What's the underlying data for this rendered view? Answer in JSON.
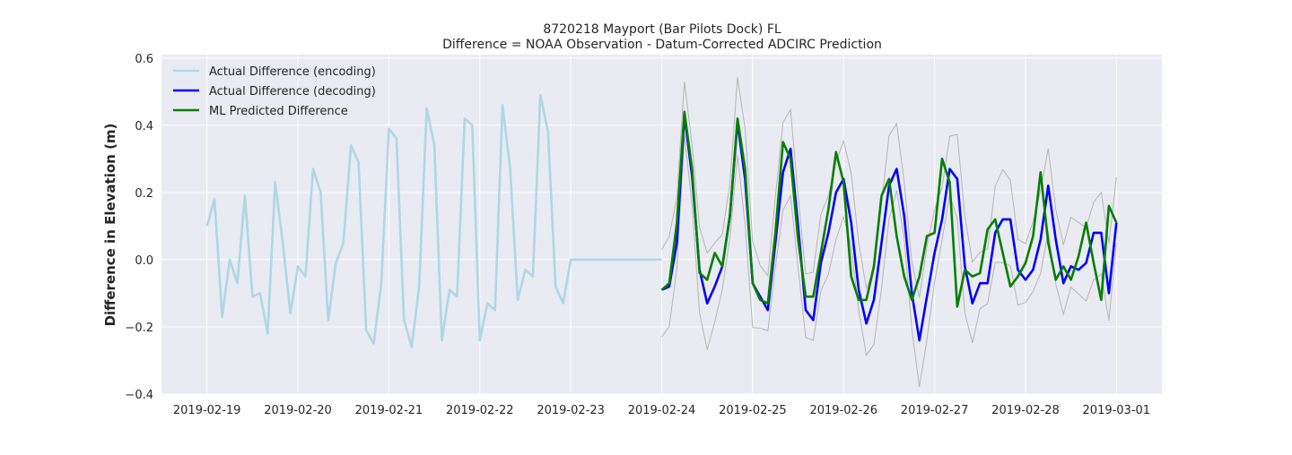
{
  "chart_data": {
    "type": "line",
    "title": "8720218 Mayport (Bar Pilots Dock) FL",
    "subtitle": "Difference = NOAA Observation - Datum-Corrected ADCIRC Prediction",
    "xlabel": "",
    "ylabel": "Difference in Elevation (m)",
    "x_axis": {
      "type": "date",
      "range": [
        "2019-02-18T12:00",
        "2019-03-01T12:00"
      ],
      "ticks": [
        "2019-02-19",
        "2019-02-20",
        "2019-02-21",
        "2019-02-22",
        "2019-02-23",
        "2019-02-24",
        "2019-02-25",
        "2019-02-26",
        "2019-02-27",
        "2019-02-28",
        "2019-03-01"
      ]
    },
    "y_axis": {
      "range": [
        -0.4,
        0.61
      ],
      "ticks": [
        -0.4,
        -0.2,
        0.0,
        0.2,
        0.4,
        0.6
      ],
      "tick_labels": [
        "−0.4",
        "−0.2",
        "0.0",
        "0.2",
        "0.4",
        "0.6"
      ]
    },
    "grid": true,
    "legend_position": "top-left",
    "colors": {
      "background": "#eaeaf2",
      "encoding": "#add8e6",
      "decoding": "#0000ff",
      "predicted": "#008000",
      "bounds": "#b5b5b5",
      "grid": "#ffffff"
    },
    "series": [
      {
        "name": "Actual Difference (encoding)",
        "role": "encoding",
        "x": [
          "2019-02-19T00:00",
          "2019-02-19T02:00",
          "2019-02-19T04:00",
          "2019-02-19T06:00",
          "2019-02-19T08:00",
          "2019-02-19T10:00",
          "2019-02-19T12:00",
          "2019-02-19T14:00",
          "2019-02-19T16:00",
          "2019-02-19T18:00",
          "2019-02-19T20:00",
          "2019-02-19T22:00",
          "2019-02-20T00:00",
          "2019-02-20T02:00",
          "2019-02-20T04:00",
          "2019-02-20T06:00",
          "2019-02-20T08:00",
          "2019-02-20T10:00",
          "2019-02-20T12:00",
          "2019-02-20T14:00",
          "2019-02-20T16:00",
          "2019-02-20T18:00",
          "2019-02-20T20:00",
          "2019-02-20T22:00",
          "2019-02-21T00:00",
          "2019-02-21T02:00",
          "2019-02-21T04:00",
          "2019-02-21T06:00",
          "2019-02-21T08:00",
          "2019-02-21T10:00",
          "2019-02-21T12:00",
          "2019-02-21T14:00",
          "2019-02-21T16:00",
          "2019-02-21T18:00",
          "2019-02-21T20:00",
          "2019-02-21T22:00",
          "2019-02-22T00:00",
          "2019-02-22T02:00",
          "2019-02-22T04:00",
          "2019-02-22T06:00",
          "2019-02-22T08:00",
          "2019-02-22T10:00",
          "2019-02-22T12:00",
          "2019-02-22T14:00",
          "2019-02-22T16:00",
          "2019-02-22T18:00",
          "2019-02-22T20:00",
          "2019-02-22T22:00",
          "2019-02-23T00:00",
          "2019-02-23T02:00",
          "2019-02-23T04:00",
          "2019-02-23T06:00",
          "2019-02-23T08:00",
          "2019-02-23T10:00",
          "2019-02-23T12:00",
          "2019-02-23T14:00",
          "2019-02-23T16:00",
          "2019-02-23T18:00",
          "2019-02-23T20:00",
          "2019-02-23T22:00",
          "2019-02-24T00:00"
        ],
        "y": [
          0.1,
          0.18,
          -0.17,
          0.0,
          -0.07,
          0.19,
          -0.11,
          -0.1,
          -0.22,
          0.23,
          0.05,
          -0.16,
          -0.02,
          -0.05,
          0.27,
          0.2,
          -0.18,
          -0.01,
          0.05,
          0.34,
          0.29,
          -0.21,
          -0.25,
          -0.07,
          0.39,
          0.36,
          -0.18,
          -0.26,
          -0.08,
          0.45,
          0.34,
          -0.24,
          -0.09,
          -0.11,
          0.42,
          0.4,
          -0.24,
          -0.13,
          -0.15,
          0.46,
          0.27,
          -0.12,
          -0.03,
          -0.05,
          0.49,
          0.38,
          -0.08,
          -0.13,
          0.0,
          0.0,
          0.0,
          0.0,
          0.0,
          0.0,
          0.0,
          0.0,
          0.0,
          0.0,
          0.0,
          0.0,
          0.0
        ]
      },
      {
        "name": "Actual Difference (decoding)",
        "role": "decoding",
        "x": [],
        "y": []
      },
      {
        "name": "ML Predicted Difference",
        "role": "predicted",
        "x": [],
        "y": []
      }
    ],
    "bounds": [
      {
        "role": "upper",
        "x": [],
        "y": []
      },
      {
        "role": "lower",
        "x": [],
        "y": []
      }
    ]
  }
}
